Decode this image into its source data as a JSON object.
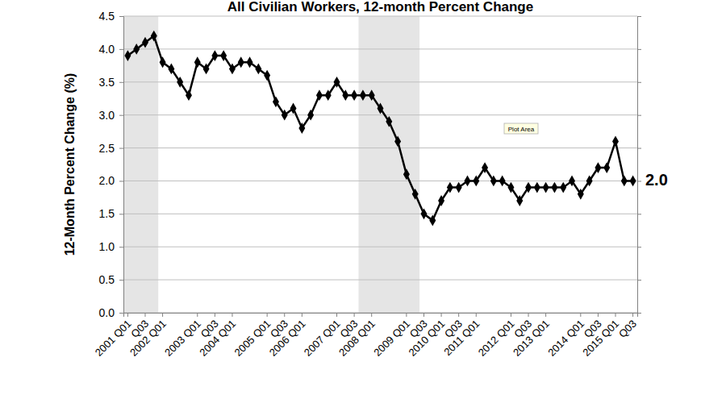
{
  "chart_data": {
    "type": "line",
    "title": "All Civilian Workers, 12-month Percent Change",
    "y_label": "12-Month Percent Change (%)",
    "categories": [
      "2001 Q01",
      null,
      "Q03",
      null,
      "2002 Q01",
      null,
      null,
      null,
      "2003 Q01",
      null,
      "Q03",
      null,
      "2004 Q01",
      null,
      null,
      null,
      "2005 Q01",
      null,
      "Q03",
      null,
      "2006 Q01",
      null,
      null,
      null,
      "2007 Q01",
      null,
      "Q03",
      null,
      "2008 Q01",
      null,
      null,
      null,
      "2009 Q01",
      null,
      "Q03",
      null,
      "2010 Q01",
      null,
      "Q03",
      null,
      "2011 Q01",
      null,
      null,
      null,
      "2012 Q01",
      null,
      "Q03",
      null,
      "2013 Q01",
      null,
      null,
      null,
      "2014 Q01",
      null,
      "Q03",
      null,
      "2015 Q01",
      null,
      "Q03"
    ],
    "values": [
      3.9,
      4.0,
      4.1,
      4.2,
      3.8,
      3.7,
      3.5,
      3.3,
      3.8,
      3.7,
      3.9,
      3.9,
      3.7,
      3.8,
      3.8,
      3.7,
      3.6,
      3.2,
      3.0,
      3.1,
      2.8,
      3.0,
      3.3,
      3.3,
      3.5,
      3.3,
      3.3,
      3.3,
      3.3,
      3.1,
      2.9,
      2.6,
      2.1,
      1.8,
      1.5,
      1.4,
      1.7,
      1.9,
      1.9,
      2.0,
      2.0,
      2.2,
      2.0,
      2.0,
      1.9,
      1.7,
      1.9,
      1.9,
      1.9,
      1.9,
      1.9,
      2.0,
      1.8,
      2.0,
      2.2,
      2.2,
      2.6,
      2.0,
      2.0
    ],
    "color": "#000000",
    "marker": "diamond",
    "line_style": "solid",
    "ylim": [
      0,
      4.5
    ],
    "yticks": [
      {
        "value": 0,
        "label": "0.0"
      },
      0.5,
      {
        "value": 1,
        "label": "1.0"
      },
      1.5,
      {
        "value": 2,
        "label": "2.0"
      },
      2.5,
      {
        "value": 3,
        "label": "3.0"
      },
      3.5,
      {
        "value": 4,
        "label": "4.0"
      },
      4.5
    ],
    "grid": true,
    "shaded_periods": [
      {
        "start": 0,
        "end": 3
      },
      {
        "start": 27,
        "end": 33
      }
    ],
    "annotations": [
      {
        "text": "2.0"
      },
      {
        "text": "Plot Area"
      }
    ]
  }
}
